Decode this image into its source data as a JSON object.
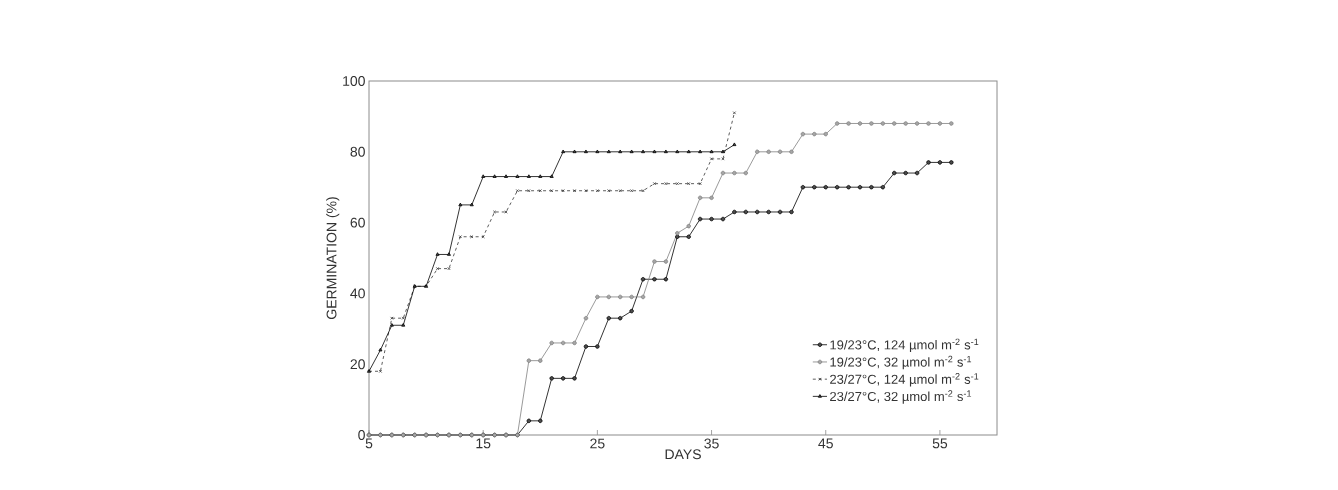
{
  "chart_data": {
    "type": "line",
    "xlabel": "DAYS",
    "ylabel": "GERMINATION (%)",
    "xlim": [
      5,
      60
    ],
    "ylim": [
      0,
      100
    ],
    "xticks": [
      5,
      15,
      25,
      35,
      45,
      55
    ],
    "yticks": [
      0,
      20,
      40,
      60,
      80,
      100
    ],
    "grid": false,
    "legend": "bottom right",
    "series": [
      {
        "name": "19/23°C, 124 µmol m$^{-2}$ s$^{-1}$",
        "color": "#000000",
        "marker": "circle",
        "line_style": "solid",
        "x": [
          5,
          6,
          7,
          8,
          9,
          10,
          11,
          12,
          13,
          14,
          15,
          16,
          17,
          18,
          19,
          20,
          21,
          22,
          23,
          24,
          25,
          26,
          27,
          28,
          29,
          30,
          31,
          32,
          33,
          34,
          35,
          36,
          37,
          38,
          39,
          40,
          41,
          42,
          43,
          44,
          45,
          46,
          47,
          48,
          49,
          50,
          51,
          52,
          53,
          54,
          55,
          56
        ],
        "values": [
          0,
          0,
          0,
          0,
          0,
          0,
          0,
          0,
          0,
          0,
          0,
          0,
          0,
          0,
          4,
          4,
          16,
          16,
          16,
          25,
          25,
          33,
          33,
          35,
          44,
          44,
          44,
          56,
          56,
          61,
          61,
          61,
          63,
          63,
          63,
          63,
          63,
          63,
          70,
          70,
          70,
          70,
          70,
          70,
          70,
          70,
          74,
          74,
          74,
          77,
          77,
          77
        ]
      },
      {
        "name": "19/23°C, 32 µmol m$^{-2}$ s$^{-1}$",
        "color": "#808080",
        "marker": "circle",
        "line_style": "solid",
        "x": [
          5,
          6,
          7,
          8,
          9,
          10,
          11,
          12,
          13,
          14,
          15,
          16,
          17,
          18,
          19,
          20,
          21,
          22,
          23,
          24,
          25,
          26,
          27,
          28,
          29,
          30,
          31,
          32,
          33,
          34,
          35,
          36,
          37,
          38,
          39,
          40,
          41,
          42,
          43,
          44,
          45,
          46,
          47,
          48,
          49,
          50,
          51,
          52,
          53,
          54,
          55,
          56
        ],
        "values": [
          0,
          0,
          0,
          0,
          0,
          0,
          0,
          0,
          0,
          0,
          0,
          0,
          0,
          0,
          21,
          21,
          26,
          26,
          26,
          33,
          39,
          39,
          39,
          39,
          39,
          49,
          49,
          57,
          59,
          67,
          67,
          74,
          74,
          74,
          80,
          80,
          80,
          80,
          85,
          85,
          85,
          88,
          88,
          88,
          88,
          88,
          88,
          88,
          88,
          88,
          88,
          88
        ]
      },
      {
        "name": "23/27°C, 124 µmol m$^{-2}$ s$^{-1}$",
        "color": "#333333",
        "marker": "cross",
        "line_style": "dashed",
        "x": [
          5,
          6,
          7,
          8,
          9,
          10,
          11,
          12,
          13,
          14,
          15,
          16,
          17,
          18,
          19,
          20,
          21,
          22,
          23,
          24,
          25,
          26,
          27,
          28,
          29,
          30,
          31,
          32,
          33,
          34,
          35,
          36,
          37
        ],
        "values": [
          18,
          18,
          33,
          33,
          42,
          42,
          47,
          47,
          56,
          56,
          56,
          63,
          63,
          69,
          69,
          69,
          69,
          69,
          69,
          69,
          69,
          69,
          69,
          69,
          69,
          71,
          71,
          71,
          71,
          71,
          78,
          78,
          91
        ]
      },
      {
        "name": "23/27°C, 32 µmol m$^{-2}$ s$^{-1}$",
        "color": "#000000",
        "marker": "triangle",
        "line_style": "solid",
        "x": [
          5,
          6,
          7,
          8,
          9,
          10,
          11,
          12,
          13,
          14,
          15,
          16,
          17,
          18,
          19,
          20,
          21,
          22,
          23,
          24,
          25,
          26,
          27,
          28,
          29,
          30,
          31,
          32,
          33,
          34,
          35,
          36,
          37
        ],
        "values": [
          18,
          24,
          31,
          31,
          42,
          42,
          51,
          51,
          65,
          65,
          73,
          73,
          73,
          73,
          73,
          73,
          73,
          80,
          80,
          80,
          80,
          80,
          80,
          80,
          80,
          80,
          80,
          80,
          80,
          80,
          80,
          80,
          82
        ]
      }
    ]
  }
}
